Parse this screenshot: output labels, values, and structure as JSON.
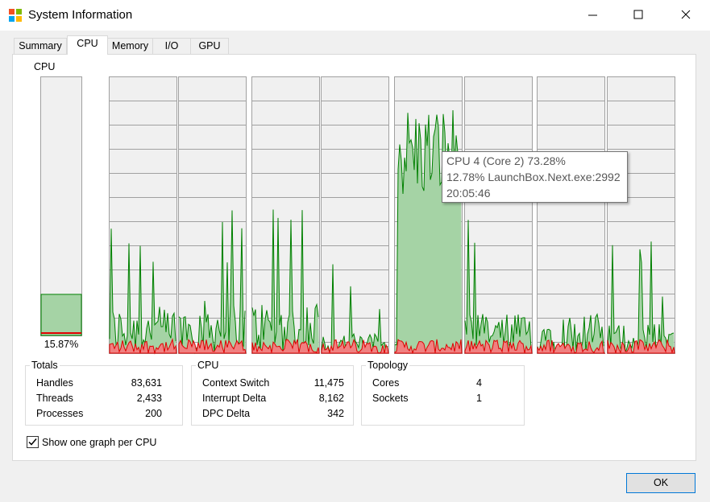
{
  "window": {
    "title": "System Information"
  },
  "tabs": [
    "Summary",
    "CPU",
    "Memory",
    "I/O",
    "GPU"
  ],
  "cpu": {
    "label": "CPU",
    "gauge": {
      "value": 15.87,
      "label": "15.87%"
    }
  },
  "tooltip": {
    "lines": [
      "CPU 4 (Core 2) 73.28%",
      "12.78% LaunchBox.Next.exe:2992",
      "20:05:46"
    ]
  },
  "groups": [
    {
      "title": "Totals",
      "rows": [
        [
          "Handles",
          "83,631"
        ],
        [
          "Threads",
          "2,433"
        ],
        [
          "Processes",
          "200"
        ]
      ]
    },
    {
      "title": "CPU",
      "rows": [
        [
          "Context Switch",
          "11,475"
        ],
        [
          "Interrupt Delta",
          "8,162"
        ],
        [
          "DPC Delta",
          "342"
        ]
      ]
    },
    {
      "title": "Topology",
      "rows": [
        [
          "Cores",
          "4"
        ],
        [
          "Sockets",
          "1"
        ]
      ]
    }
  ],
  "checkbox": {
    "label": "Show one graph per CPU",
    "checked": true
  },
  "ok_button": "OK"
}
